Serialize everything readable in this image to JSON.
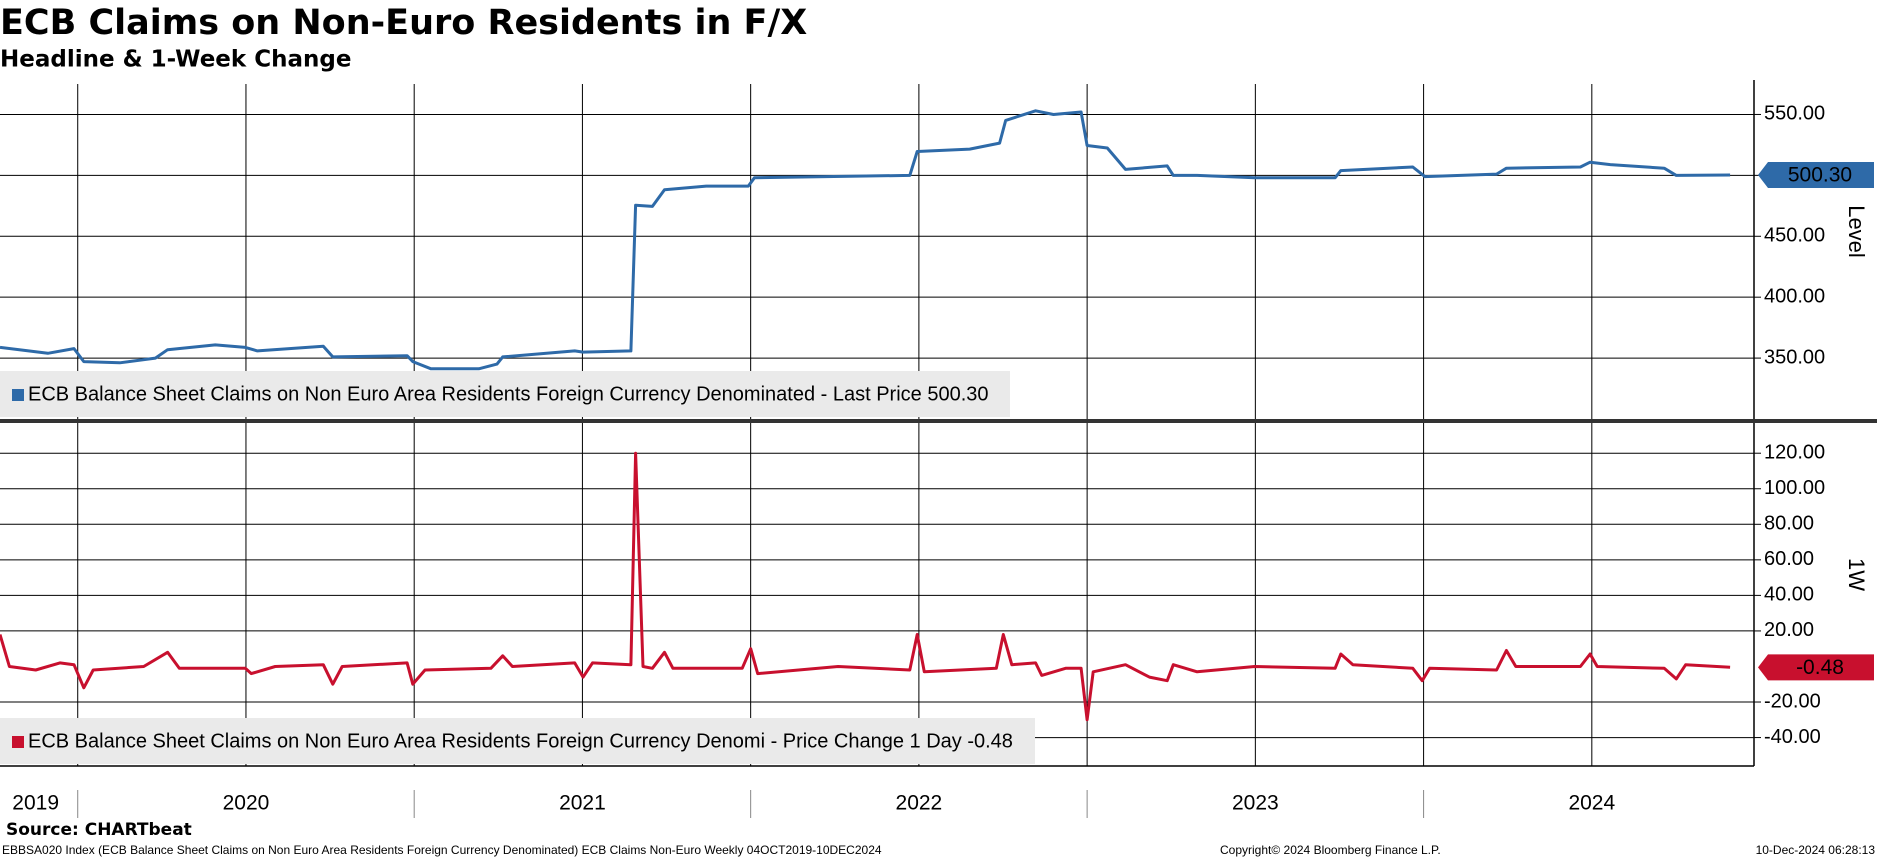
{
  "title": "ECB Claims on Non-Euro Residents in F/X",
  "subtitle": "Headline & 1-Week Change",
  "source": "Source: CHARTbeat",
  "footer": "EBBSA020 Index (ECB Balance Sheet Claims on Non Euro Area Residents Foreign Currency Denominated) ECB Claims Non-Euro  Weekly 04OCT2019-10DEC2024",
  "copyright": "Copyright© 2024 Bloomberg Finance L.P.",
  "timestamp": "10-Dec-2024 06:28:13",
  "chart_data": [
    {
      "type": "line",
      "y_label": "Level",
      "xlim": [
        2019.769,
        2024.982
      ],
      "ylim": [
        300,
        575
      ],
      "xgrid": [
        2020,
        2020.5,
        2021,
        2021.5,
        2022,
        2022.5,
        2023,
        2023.5,
        2024,
        2024.5
      ],
      "yticks": [
        {
          "value": 350,
          "label": "350.00"
        },
        {
          "value": 400,
          "label": "400.00"
        },
        {
          "value": 450,
          "label": "450.00"
        },
        {
          "value": 500,
          "label": "500.00"
        },
        {
          "value": 550,
          "label": "550.00"
        }
      ],
      "last_label": {
        "value": 500.3,
        "label": "500.30"
      },
      "x": [
        2019.769,
        2019.911,
        2019.989,
        2020.018,
        2020.125,
        2020.231,
        2020.267,
        2020.409,
        2020.498,
        2020.534,
        2020.73,
        2020.758,
        2020.979,
        2020.996,
        2021.05,
        2021.192,
        2021.246,
        2021.263,
        2021.477,
        2021.502,
        2021.644,
        2021.658,
        2021.708,
        2021.744,
        2021.868,
        2021.993,
        2022.011,
        2022.224,
        2022.473,
        2022.495,
        2022.651,
        2022.74,
        2022.758,
        2022.847,
        2022.9,
        2022.982,
        2023.0,
        2023.06,
        2023.114,
        2023.238,
        2023.256,
        2023.327,
        2023.498,
        2023.737,
        2023.754,
        2023.968,
        2024.004,
        2024.217,
        2024.246,
        2024.466,
        2024.495,
        2024.555,
        2024.715,
        2024.751,
        2024.911
      ],
      "series": [
        {
          "name": "ECB Balance Sheet Claims on Non Euro Area Residents Foreign Currency Denominated - Last Price 500.30",
          "color": "#2e6aa8",
          "values": [
            358.8,
            353.9,
            357.8,
            347.1,
            346.1,
            350,
            356.9,
            360.8,
            358.8,
            355.9,
            359.8,
            351,
            352,
            347.1,
            341.2,
            341.2,
            345.1,
            351,
            355.9,
            354.9,
            355.9,
            475.5,
            474.5,
            488.2,
            491.2,
            491.2,
            498,
            499,
            500,
            519.6,
            521.6,
            526.5,
            545.1,
            553,
            550,
            552,
            524.5,
            522.5,
            504.9,
            507.8,
            500,
            500,
            498,
            498,
            503.9,
            506.9,
            499,
            501,
            505.9,
            506.9,
            510.8,
            508.8,
            505.9,
            500,
            500.3
          ]
        }
      ]
    },
    {
      "type": "line",
      "y_label": "1W",
      "xlim": [
        2019.769,
        2024.982
      ],
      "ylim": [
        -56,
        137
      ],
      "xgrid": [
        2020,
        2020.5,
        2021,
        2021.5,
        2022,
        2022.5,
        2023,
        2023.5,
        2024,
        2024.5
      ],
      "xticks": [
        {
          "value": 2019.875,
          "label": "2019"
        },
        {
          "value": 2020.5,
          "label": "2020"
        },
        {
          "value": 2021.5,
          "label": "2021"
        },
        {
          "value": 2022.5,
          "label": "2022"
        },
        {
          "value": 2023.5,
          "label": "2023"
        },
        {
          "value": 2024.5,
          "label": "2024"
        }
      ],
      "yticks": [
        {
          "value": -40,
          "label": "-40.00"
        },
        {
          "value": -20,
          "label": "-20.00"
        },
        {
          "value": 20,
          "label": "20.00"
        },
        {
          "value": 40,
          "label": "40.00"
        },
        {
          "value": 60,
          "label": "60.00"
        },
        {
          "value": 80,
          "label": "80.00"
        },
        {
          "value": 100,
          "label": "100.00"
        },
        {
          "value": 120,
          "label": "120.00"
        }
      ],
      "last_label": {
        "value": -0.48,
        "label": "-0.48"
      },
      "x": [
        2019.769,
        2019.797,
        2019.875,
        2019.947,
        2019.989,
        2020.018,
        2020.046,
        2020.196,
        2020.267,
        2020.302,
        2020.498,
        2020.516,
        2020.587,
        2020.73,
        2020.758,
        2020.786,
        2020.979,
        2020.996,
        2021.032,
        2021.228,
        2021.263,
        2021.292,
        2021.477,
        2021.502,
        2021.53,
        2021.644,
        2021.658,
        2021.68,
        2021.708,
        2021.744,
        2021.769,
        2021.975,
        2022.0,
        2022.021,
        2022.26,
        2022.473,
        2022.495,
        2022.516,
        2022.73,
        2022.751,
        2022.776,
        2022.847,
        2022.865,
        2022.936,
        2022.982,
        2023.0,
        2023.018,
        2023.114,
        2023.185,
        2023.238,
        2023.256,
        2023.327,
        2023.498,
        2023.737,
        2023.754,
        2023.79,
        2023.968,
        2023.996,
        2024.018,
        2024.217,
        2024.246,
        2024.274,
        2024.466,
        2024.495,
        2024.516,
        2024.715,
        2024.751,
        2024.779,
        2024.911
      ],
      "series": [
        {
          "name": "ECB Balance Sheet Claims on Non Euro Area Residents Foreign Currency Denomi - Price Change 1 Day -0.48",
          "color": "#c8102e",
          "values": [
            18,
            0,
            -2,
            2,
            1,
            -12,
            -2,
            0,
            8,
            -1,
            -1,
            -4,
            0,
            1,
            -10,
            0,
            2,
            -10,
            -2,
            -1,
            6,
            0,
            2,
            -6,
            2,
            1,
            120,
            0,
            -1,
            8,
            -1,
            -1,
            10,
            -4,
            0,
            -2,
            18,
            -3,
            -1,
            18,
            1,
            2,
            -5,
            -1,
            -1,
            -30,
            -3,
            1,
            -6,
            -8,
            1,
            -3,
            0,
            -1,
            7,
            1,
            -1,
            -8,
            -1,
            -2,
            9,
            0,
            0,
            7,
            0,
            -1,
            -7,
            1,
            -0.48
          ]
        }
      ]
    }
  ]
}
